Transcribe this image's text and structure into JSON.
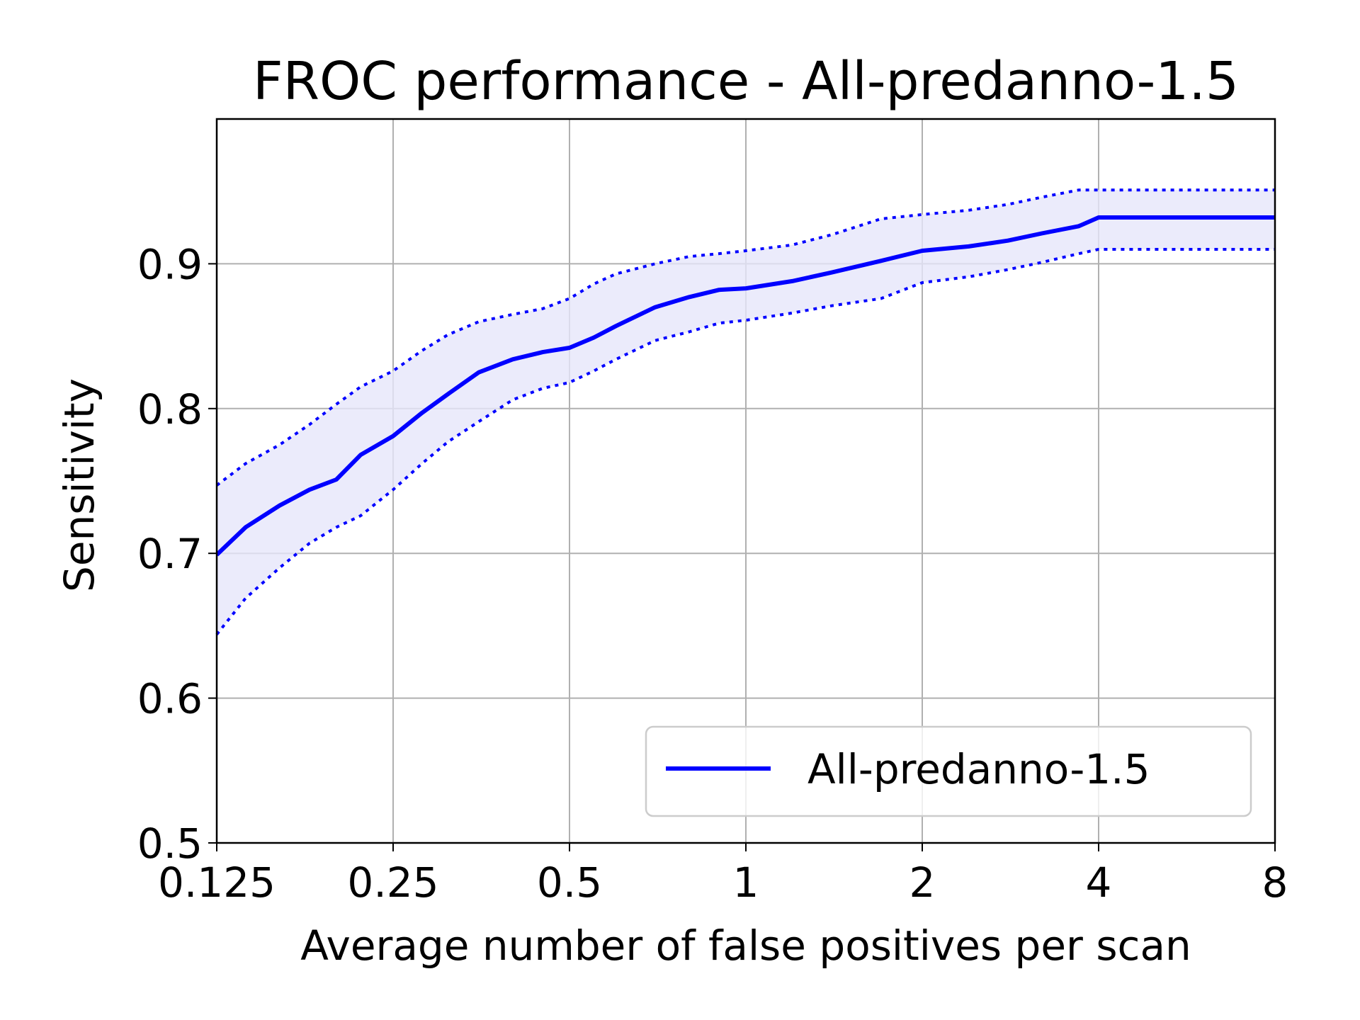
{
  "chart_data": {
    "type": "line",
    "title": "FROC performance - All-predanno-1.5",
    "xlabel": "Average number of false positives per scan",
    "ylabel": "Sensitivity",
    "x_scale": "log2",
    "xlim": [
      0.125,
      8
    ],
    "ylim": [
      0.5,
      1.0
    ],
    "x_ticks": [
      0.125,
      0.25,
      0.5,
      1,
      2,
      4,
      8
    ],
    "x_tick_labels": [
      "0.125",
      "0.25",
      "0.5",
      "1",
      "2",
      "4",
      "8"
    ],
    "y_ticks": [
      0.5,
      0.6,
      0.7,
      0.8,
      0.9
    ],
    "y_tick_labels": [
      "0.5",
      "0.6",
      "0.7",
      "0.8",
      "0.9"
    ],
    "grid": true,
    "legend_position": "lower-right",
    "series": [
      {
        "name": "All-predanno-1.5",
        "color": "#0000ff",
        "style": "solid",
        "x": [
          0.125,
          0.14,
          0.16,
          0.18,
          0.2,
          0.22,
          0.25,
          0.28,
          0.31,
          0.35,
          0.4,
          0.45,
          0.5,
          0.55,
          0.6,
          0.7,
          0.8,
          0.9,
          1.0,
          1.2,
          1.4,
          1.7,
          2.0,
          2.4,
          2.8,
          3.2,
          3.7,
          4.0,
          6.0,
          8.0
        ],
        "values": [
          0.699,
          0.718,
          0.733,
          0.744,
          0.751,
          0.768,
          0.781,
          0.797,
          0.81,
          0.825,
          0.834,
          0.839,
          0.842,
          0.849,
          0.857,
          0.87,
          0.877,
          0.882,
          0.883,
          0.888,
          0.894,
          0.902,
          0.909,
          0.912,
          0.916,
          0.921,
          0.926,
          0.932,
          0.932,
          0.932
        ]
      },
      {
        "name": "",
        "color": "#0000ff",
        "style": "dotted",
        "role": "upper bound",
        "x": [
          0.125,
          0.14,
          0.16,
          0.18,
          0.2,
          0.22,
          0.25,
          0.28,
          0.31,
          0.35,
          0.4,
          0.45,
          0.5,
          0.55,
          0.6,
          0.7,
          0.8,
          0.9,
          1.0,
          1.2,
          1.4,
          1.7,
          2.0,
          2.4,
          2.8,
          3.2,
          3.7,
          4.0,
          6.0,
          8.0
        ],
        "values": [
          0.747,
          0.762,
          0.775,
          0.789,
          0.803,
          0.815,
          0.826,
          0.84,
          0.851,
          0.86,
          0.865,
          0.869,
          0.876,
          0.886,
          0.893,
          0.9,
          0.905,
          0.907,
          0.909,
          0.913,
          0.92,
          0.931,
          0.934,
          0.937,
          0.941,
          0.946,
          0.951,
          0.951,
          0.951,
          0.951
        ]
      },
      {
        "name": "",
        "color": "#0000ff",
        "style": "dotted",
        "role": "lower bound",
        "x": [
          0.125,
          0.14,
          0.16,
          0.18,
          0.2,
          0.22,
          0.25,
          0.28,
          0.31,
          0.35,
          0.4,
          0.45,
          0.5,
          0.55,
          0.6,
          0.7,
          0.8,
          0.9,
          1.0,
          1.2,
          1.4,
          1.7,
          2.0,
          2.4,
          2.8,
          3.2,
          3.7,
          4.0,
          6.0,
          8.0
        ],
        "values": [
          0.644,
          0.669,
          0.69,
          0.707,
          0.718,
          0.726,
          0.744,
          0.762,
          0.777,
          0.791,
          0.806,
          0.814,
          0.818,
          0.826,
          0.834,
          0.847,
          0.853,
          0.859,
          0.861,
          0.866,
          0.871,
          0.876,
          0.887,
          0.891,
          0.896,
          0.901,
          0.907,
          0.91,
          0.91,
          0.91
        ]
      }
    ],
    "band_fill_color": "#e6e6fa",
    "legend_entries": [
      "All-predanno-1.5"
    ]
  }
}
